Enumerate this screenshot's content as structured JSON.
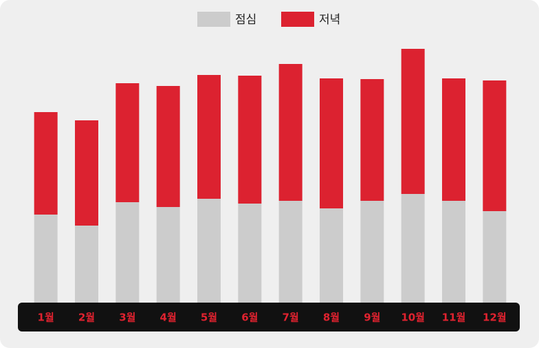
{
  "chart_data": {
    "type": "stacked-bar",
    "categories": [
      "1월",
      "2월",
      "3월",
      "4월",
      "5월",
      "6월",
      "7월",
      "8월",
      "9월",
      "10월",
      "11월",
      "12월"
    ],
    "series": [
      {
        "name": "점심",
        "color": "#cccccc",
        "values": [
          128,
          112,
          146,
          139,
          151,
          144,
          148,
          137,
          148,
          158,
          148,
          133
        ]
      },
      {
        "name": "저녁",
        "color": "#dc2230",
        "values": [
          149,
          153,
          173,
          176,
          180,
          186,
          199,
          189,
          177,
          211,
          178,
          190
        ]
      }
    ],
    "ylim": [
      0,
      440
    ]
  }
}
